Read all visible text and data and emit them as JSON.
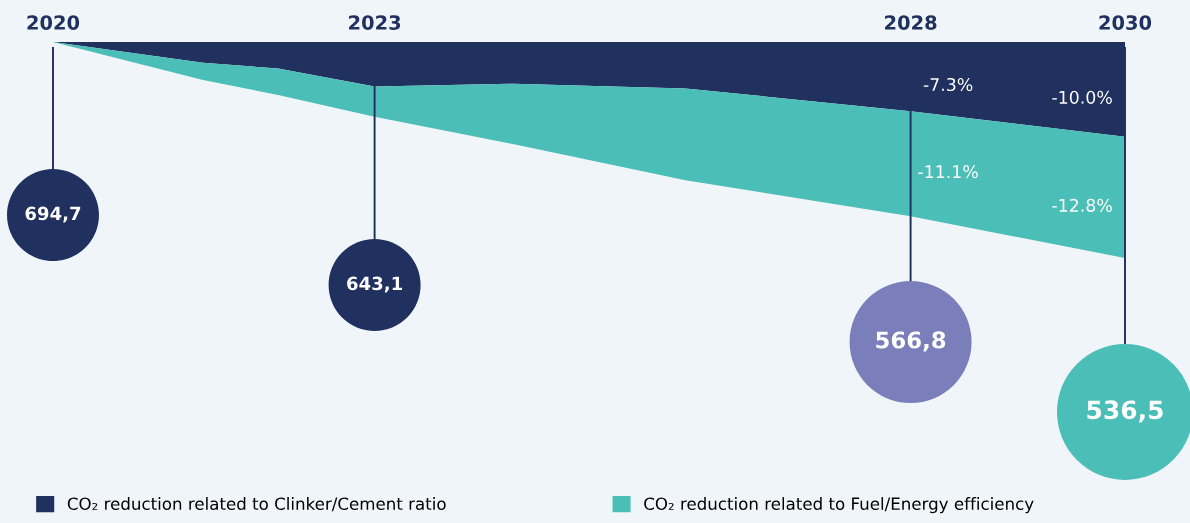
{
  "chart_data": {
    "type": "area",
    "stacked": true,
    "x": [
      2020,
      2021.4,
      2022.1,
      2023,
      2024.3,
      2025.9,
      2028,
      2030
    ],
    "xlim": [
      2020,
      2030
    ],
    "xticks": [
      2020,
      2023,
      2028,
      2030
    ],
    "tick_labels": "x",
    "legend": "bottom",
    "grid": "x",
    "annotations": [
      "694,7",
      "643,1",
      "566,8",
      "536,5"
    ],
    "series": [
      {
        "name": "CO₂ reduction related to Clinker/Cement ratio",
        "color": "#20305f",
        "values": [
          0,
          -2.2,
          -2.8,
          -4.7,
          -4.4,
          -4.9,
          -7.3,
          -10.0
        ],
        "value_labels": [
          null,
          null,
          null,
          null,
          null,
          null,
          "-7.3%",
          "-10.0%"
        ]
      },
      {
        "name": "CO₂ reduction related to Fuel/Energy efficiency",
        "color": "#4bbeb7",
        "values": [
          0,
          -1.8,
          -2.8,
          -3.2,
          -6.4,
          -9.7,
          -11.1,
          -12.8
        ],
        "value_labels": [
          null,
          null,
          null,
          null,
          null,
          null,
          "-11.1%",
          "-12.8%"
        ]
      }
    ]
  }
}
